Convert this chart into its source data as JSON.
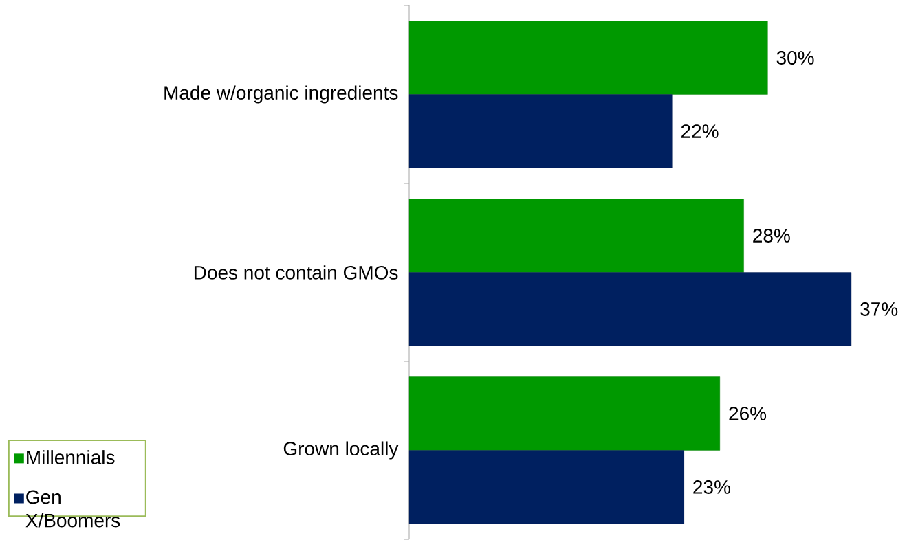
{
  "chart_data": {
    "type": "bar",
    "orientation": "horizontal",
    "categories": [
      "Made w/organic ingredients",
      "Does not contain GMOs",
      "Grown locally"
    ],
    "series": [
      {
        "name": "Millennials",
        "color": "#009900",
        "values": [
          30,
          28,
          26
        ],
        "value_labels": [
          "30%",
          "28%",
          "26%"
        ]
      },
      {
        "name": "Gen X/Boomers",
        "color": "#002060",
        "values": [
          22,
          37,
          23
        ],
        "value_labels": [
          "22%",
          "37%",
          "23%"
        ]
      }
    ],
    "legend": "bottom left"
  }
}
